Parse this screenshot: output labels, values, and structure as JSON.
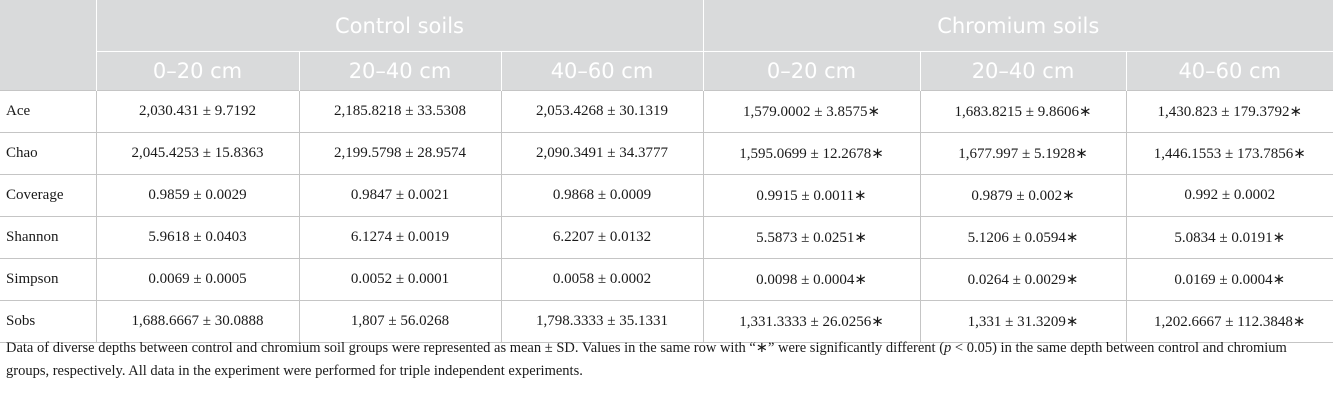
{
  "table": {
    "group_headers": [
      "Control soils",
      "Chromium soils"
    ],
    "depth_headers": [
      "0–20 cm",
      "20–40 cm",
      "40–60 cm",
      "0–20 cm",
      "20–40 cm",
      "40–60 cm"
    ],
    "rows": [
      {
        "label": "Ace",
        "cells": [
          "2,030.431 ± 9.7192",
          "2,185.8218 ± 33.5308",
          "2,053.4268 ± 30.1319",
          "1,579.0002 ± 3.8575∗",
          "1,683.8215 ± 9.8606∗",
          "1,430.823 ± 179.3792∗"
        ]
      },
      {
        "label": "Chao",
        "cells": [
          "2,045.4253 ± 15.8363",
          "2,199.5798 ± 28.9574",
          "2,090.3491 ± 34.3777",
          "1,595.0699 ± 12.2678∗",
          "1,677.997 ± 5.1928∗",
          "1,446.1553 ± 173.7856∗"
        ]
      },
      {
        "label": "Coverage",
        "cells": [
          "0.9859 ± 0.0029",
          "0.9847 ± 0.0021",
          "0.9868 ± 0.0009",
          "0.9915 ± 0.0011∗",
          "0.9879 ± 0.002∗",
          "0.992 ± 0.0002"
        ]
      },
      {
        "label": "Shannon",
        "cells": [
          "5.9618 ± 0.0403",
          "6.1274 ± 0.0019",
          "6.2207 ± 0.0132",
          "5.5873 ± 0.0251∗",
          "5.1206 ± 0.0594∗",
          "5.0834 ± 0.0191∗"
        ]
      },
      {
        "label": "Simpson",
        "cells": [
          "0.0069 ± 0.0005",
          "0.0052 ± 0.0001",
          "0.0058 ± 0.0002",
          "0.0098 ± 0.0004∗",
          "0.0264 ± 0.0029∗",
          "0.0169 ± 0.0004∗"
        ]
      },
      {
        "label": "Sobs",
        "cells": [
          "1,688.6667 ± 30.0888",
          "1,807 ± 56.0268",
          "1,798.3333 ± 35.1331",
          "1,331.3333 ± 26.0256∗",
          "1,331 ± 31.3209∗",
          "1,202.6667 ± 112.3848∗"
        ]
      }
    ]
  },
  "footnote": {
    "line1": "Data of diverse depths between control and chromium soil groups were represented as mean ± SD. Values in the same row with “∗” were significantly different (",
    "p_symbol": "p",
    "line1_tail": " < 0.05) in the same depth between control and chromium groups, respectively. All data in the experiment were performed for triple independent experiments."
  },
  "colors": {
    "header_bg": "#d9dadb",
    "header_text": "#ffffff",
    "body_text": "#1a1a1a",
    "rule": "#c5c5c5"
  }
}
